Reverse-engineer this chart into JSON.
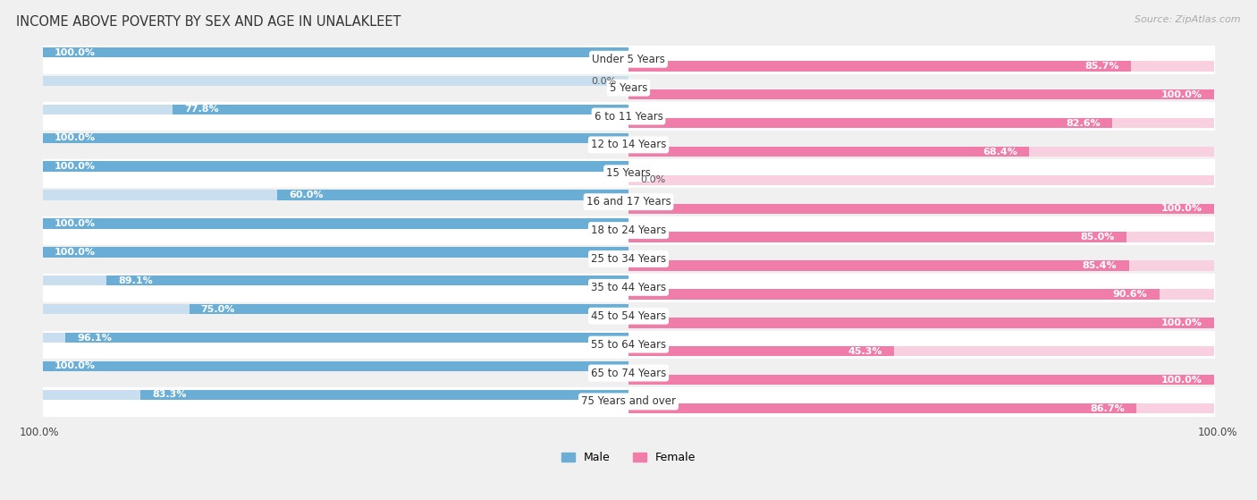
{
  "title": "INCOME ABOVE POVERTY BY SEX AND AGE IN UNALAKLEET",
  "source": "Source: ZipAtlas.com",
  "categories": [
    "Under 5 Years",
    "5 Years",
    "6 to 11 Years",
    "12 to 14 Years",
    "15 Years",
    "16 and 17 Years",
    "18 to 24 Years",
    "25 to 34 Years",
    "35 to 44 Years",
    "45 to 54 Years",
    "55 to 64 Years",
    "65 to 74 Years",
    "75 Years and over"
  ],
  "male": [
    100.0,
    0.0,
    77.8,
    100.0,
    100.0,
    60.0,
    100.0,
    100.0,
    89.1,
    75.0,
    96.1,
    100.0,
    83.3
  ],
  "female": [
    85.7,
    100.0,
    82.6,
    68.4,
    0.0,
    100.0,
    85.0,
    85.4,
    90.6,
    100.0,
    45.3,
    100.0,
    86.7
  ],
  "male_color": "#6aaed6",
  "female_color": "#f07caa",
  "male_bg_color": "#c9dff0",
  "female_bg_color": "#f9d0e0",
  "male_label": "Male",
  "female_label": "Female",
  "row_colors": [
    "#ffffff",
    "#f0f0f0"
  ],
  "title_fontsize": 10.5,
  "label_fontsize": 8.5,
  "value_fontsize": 8.0,
  "source_fontsize": 8,
  "bg_color": "#f0f0f0"
}
